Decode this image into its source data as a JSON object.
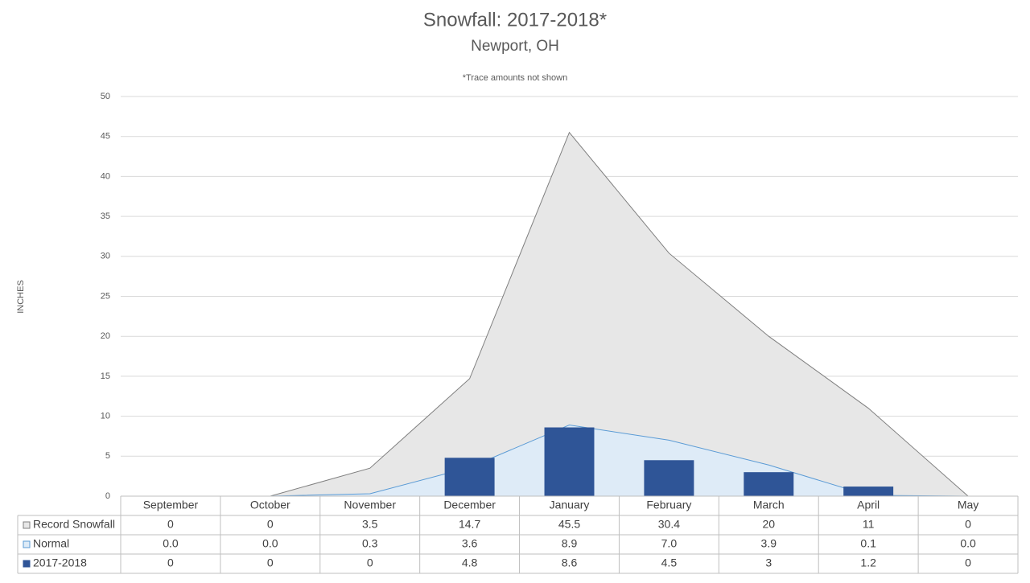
{
  "chart_data": {
    "type": "combo",
    "title": "Snowfall: 2017-2018*",
    "subtitle": "Newport, OH",
    "annotation": "*Trace amounts not shown",
    "y_label": "INCHES",
    "categories": [
      "September",
      "October",
      "November",
      "December",
      "January",
      "February",
      "March",
      "April",
      "May"
    ],
    "series": [
      {
        "name": "Record Snowfall",
        "type": "area",
        "color": "#e7e7e7",
        "line_color": "#7f7f7f",
        "values": [
          0,
          0,
          3.5,
          14.7,
          45.5,
          30.4,
          20,
          11,
          0
        ]
      },
      {
        "name": "Normal",
        "type": "area",
        "color": "#deebf7",
        "line_color": "#5b9bd5",
        "values": [
          0,
          0,
          0.3,
          3.6,
          8.9,
          7.0,
          3.9,
          0.1,
          0
        ],
        "value_labels": [
          "0.0",
          "0.0",
          "0.3",
          "3.6",
          "8.9",
          "7.0",
          "3.9",
          "0.1",
          "0.0"
        ]
      },
      {
        "name": "2017-2018",
        "type": "bar",
        "color": "#2f5597",
        "values": [
          0,
          0,
          0,
          4.8,
          8.6,
          4.5,
          3,
          1.2,
          0
        ]
      }
    ],
    "ylim": [
      0,
      50
    ],
    "yticks": [
      0,
      5,
      10,
      15,
      20,
      25,
      30,
      35,
      40,
      45,
      50
    ],
    "grid": true,
    "data_table": true
  }
}
